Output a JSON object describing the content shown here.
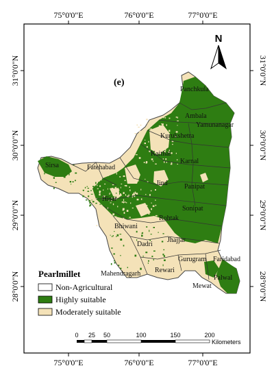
{
  "panel_label": "(e)",
  "north_label": "N",
  "top_axis": [
    "75°0'0\"E",
    "76°0'0\"E",
    "77°0'0\"E"
  ],
  "bottom_axis": [
    "75°0'0\"E",
    "76°0'0\"E",
    "77°0'0\"E"
  ],
  "left_axis": [
    "31°0'0\"N",
    "30°0'0\"N",
    "29°0'0\"N",
    "28°0'0\"N"
  ],
  "right_axis": [
    "31°0'0\"N",
    "30°0'0\"N",
    "29°0'0\"N",
    "28°0'0\"N"
  ],
  "districts": [
    "Panchkula",
    "Ambala",
    "Yamunanagar",
    "Kurukshetra",
    "Kaithal",
    "Karnal",
    "Fatehabad",
    "Sirsa",
    "Jind",
    "Panipat",
    "Hisar",
    "Sonipat",
    "Rohtak",
    "Bhiwani",
    "Dadri",
    "Jhajjar",
    "Gurugram",
    "Faridabad",
    "Mahendragarh",
    "Rewari",
    "Palwal",
    "Mewat"
  ],
  "legend": {
    "title": "Pearlmillet",
    "items": [
      {
        "label": "Non-Agricultural",
        "color": "#ffffff"
      },
      {
        "label": "Highly suitable",
        "color": "#2e7d12"
      },
      {
        "label": "Moderately suitable",
        "color": "#f4e2b8"
      }
    ]
  },
  "scale": {
    "ticks": [
      "0",
      "25",
      "50",
      "100",
      "150",
      "200"
    ],
    "unit": "Kilometers"
  },
  "colors": {
    "highly": "#2e7d12",
    "moderate": "#f4e2b8",
    "border": "#444444",
    "frame": "#000000"
  }
}
